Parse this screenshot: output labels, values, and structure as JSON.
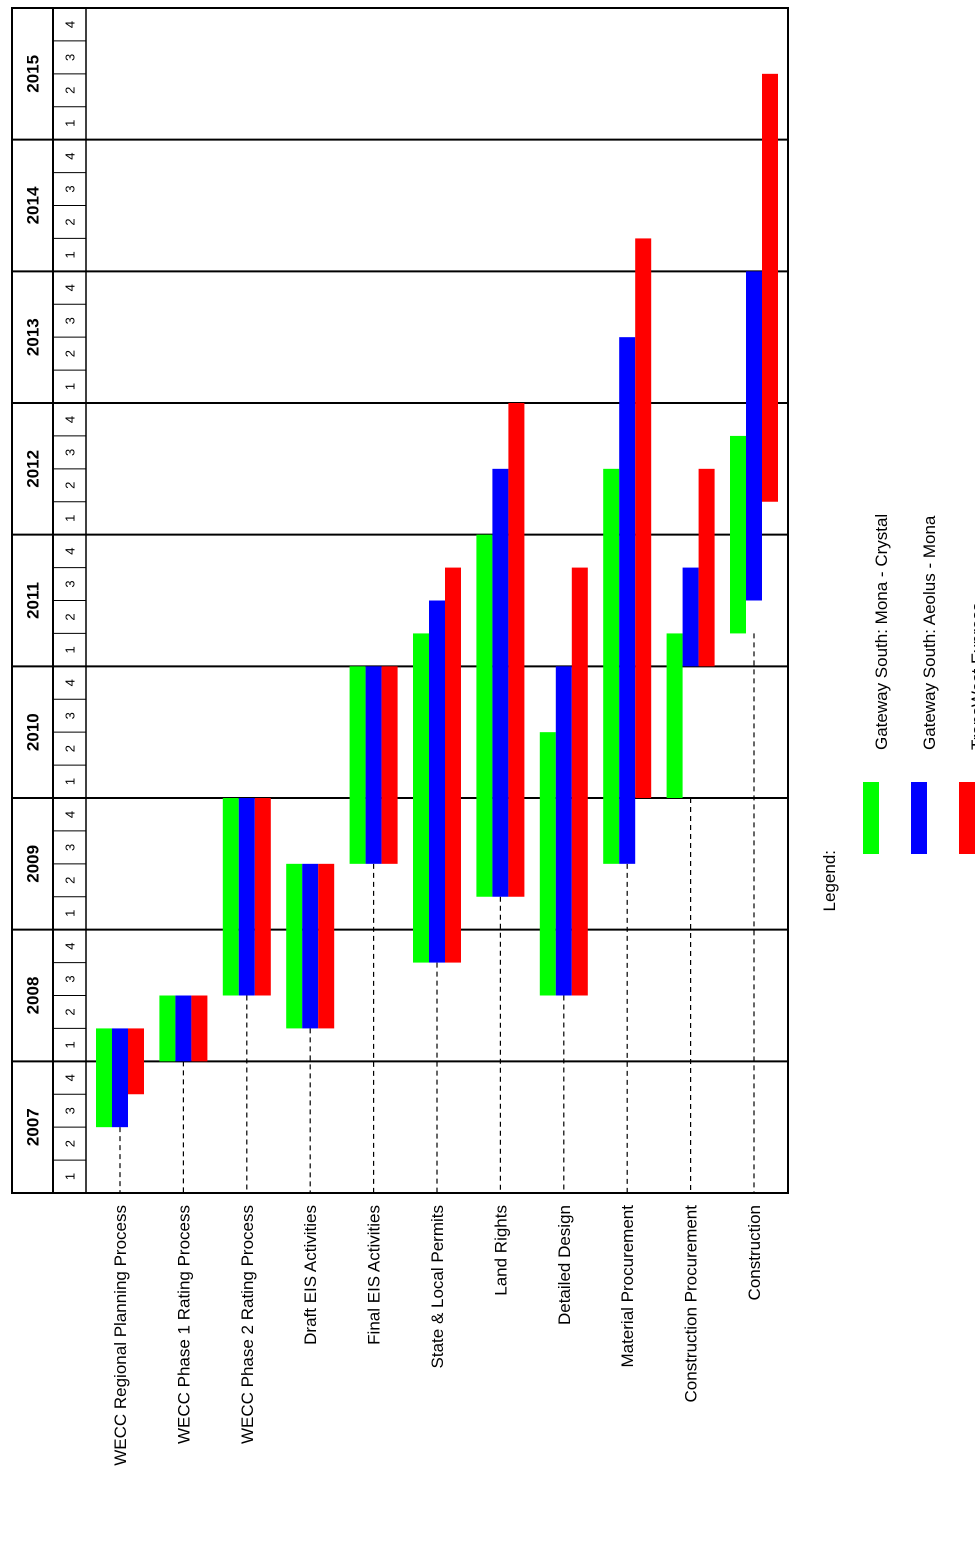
{
  "chart_data": {
    "type": "gantt",
    "orientation": "rotated-90-ccw",
    "years": [
      "2007",
      "2008",
      "2009",
      "2010",
      "2011",
      "2012",
      "2013",
      "2014",
      "2015"
    ],
    "quarters": [
      "1",
      "2",
      "3",
      "4"
    ],
    "time_unit": "year-quarter",
    "time_range": [
      "2007 Q1",
      "2015 Q4"
    ],
    "tasks": [
      "WECC Regional Planning Process",
      "WECC Phase 1 Rating Process",
      "WECC Phase 2 Rating Process",
      "Draft EIS Activities",
      "Final EIS Activities",
      "State & Local Permits",
      "Land Rights",
      "Detailed Design",
      "Material Procurement",
      "Construction Procurement",
      "Construction"
    ],
    "series": [
      {
        "name": "Gateway South:  Mona - Crystal",
        "color": "#00ff00",
        "bars": [
          {
            "task": "WECC Regional Planning Process",
            "start": "2007 Q3",
            "end": "2008 Q1"
          },
          {
            "task": "WECC Phase 1 Rating Process",
            "start": "2008 Q1",
            "end": "2008 Q2"
          },
          {
            "task": "WECC Phase 2 Rating Process",
            "start": "2008 Q3",
            "end": "2009 Q4"
          },
          {
            "task": "Draft EIS Activities",
            "start": "2008 Q2",
            "end": "2009 Q2"
          },
          {
            "task": "Final EIS Activities",
            "start": "2009 Q3",
            "end": "2010 Q4"
          },
          {
            "task": "State & Local Permits",
            "start": "2008 Q4",
            "end": "2011 Q1"
          },
          {
            "task": "Land Rights",
            "start": "2009 Q2",
            "end": "2011 Q4"
          },
          {
            "task": "Detailed Design",
            "start": "2008 Q3",
            "end": "2010 Q2"
          },
          {
            "task": "Material Procurement",
            "start": "2009 Q3",
            "end": "2012 Q2"
          },
          {
            "task": "Construction Procurement",
            "start": "2010 Q1",
            "end": "2011 Q1"
          },
          {
            "task": "Construction",
            "start": "2011 Q2",
            "end": "2012 Q3"
          }
        ]
      },
      {
        "name": "Gateway South:  Aeolus - Mona",
        "color": "#0000ff",
        "bars": [
          {
            "task": "WECC Regional Planning Process",
            "start": "2007 Q3",
            "end": "2008 Q1"
          },
          {
            "task": "WECC Phase 1 Rating Process",
            "start": "2008 Q1",
            "end": "2008 Q2"
          },
          {
            "task": "WECC Phase 2 Rating Process",
            "start": "2008 Q3",
            "end": "2009 Q4"
          },
          {
            "task": "Draft EIS Activities",
            "start": "2008 Q2",
            "end": "2009 Q2"
          },
          {
            "task": "Final EIS Activities",
            "start": "2009 Q3",
            "end": "2010 Q4"
          },
          {
            "task": "State & Local Permits",
            "start": "2008 Q4",
            "end": "2011 Q2"
          },
          {
            "task": "Land Rights",
            "start": "2009 Q2",
            "end": "2012 Q2"
          },
          {
            "task": "Detailed Design",
            "start": "2008 Q3",
            "end": "2010 Q4"
          },
          {
            "task": "Material Procurement",
            "start": "2009 Q3",
            "end": "2013 Q2"
          },
          {
            "task": "Construction Procurement",
            "start": "2011 Q1",
            "end": "2011 Q3"
          },
          {
            "task": "Construction",
            "start": "2011 Q3",
            "end": "2013 Q4"
          }
        ]
      },
      {
        "name": "TransWest Express",
        "color": "#ff0000",
        "bars": [
          {
            "task": "WECC Regional Planning Process",
            "start": "2007 Q4",
            "end": "2008 Q1"
          },
          {
            "task": "WECC Phase 1 Rating Process",
            "start": "2008 Q1",
            "end": "2008 Q2"
          },
          {
            "task": "WECC Phase 2 Rating Process",
            "start": "2008 Q3",
            "end": "2009 Q4"
          },
          {
            "task": "Draft EIS Activities",
            "start": "2008 Q2",
            "end": "2009 Q2"
          },
          {
            "task": "Final EIS Activities",
            "start": "2009 Q3",
            "end": "2010 Q4"
          },
          {
            "task": "State & Local Permits",
            "start": "2008 Q4",
            "end": "2011 Q3"
          },
          {
            "task": "Land Rights",
            "start": "2009 Q2",
            "end": "2012 Q4"
          },
          {
            "task": "Detailed Design",
            "start": "2008 Q3",
            "end": "2011 Q3"
          },
          {
            "task": "Material Procurement",
            "start": "2010 Q1",
            "end": "2014 Q1"
          },
          {
            "task": "Construction Procurement",
            "start": "2011 Q1",
            "end": "2012 Q2"
          },
          {
            "task": "Construction",
            "start": "2012 Q2",
            "end": "2015 Q2"
          }
        ]
      }
    ],
    "legend": {
      "title": "Legend:",
      "placement": "bottom-right"
    },
    "grid": true,
    "dashed_guides": true
  }
}
